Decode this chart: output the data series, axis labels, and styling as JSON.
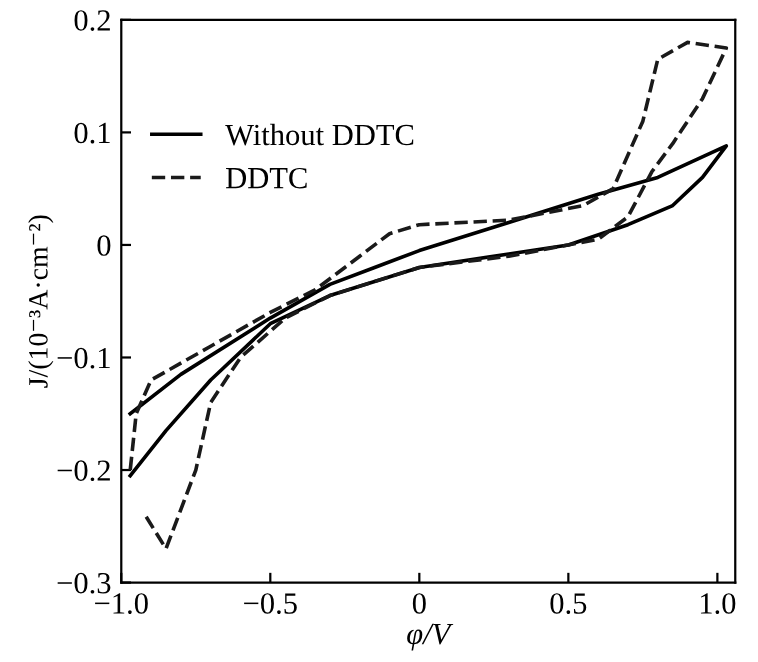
{
  "chart_data": {
    "type": "line",
    "xlabel": "φ/V",
    "ylabel": "J/(10⁻³A·cm⁻²)",
    "xlim": [
      -1.0,
      1.06
    ],
    "ylim": [
      -0.3,
      0.2
    ],
    "xticks": [
      {
        "value": -1.0,
        "label": "−1.0"
      },
      {
        "value": -0.5,
        "label": "−0.5"
      },
      0,
      0.5,
      {
        "value": 1.0,
        "label": "1.0"
      }
    ],
    "yticks": [
      {
        "value": -0.3,
        "label": "−0.3"
      },
      {
        "value": -0.2,
        "label": "−0.2"
      },
      {
        "value": -0.1,
        "label": "−0.1"
      },
      0,
      0.1,
      0.2
    ],
    "grid": false,
    "legend": "top left",
    "marker": "none",
    "series": [
      {
        "name": "Without DDTC",
        "color": "#000000",
        "line_style": "solid",
        "x": [
          -0.97,
          -0.8,
          -0.5,
          -0.3,
          -0.15,
          0,
          0.3,
          0.6,
          0.8,
          1.03,
          0.95,
          0.85,
          0.7,
          0.5,
          0.3,
          0,
          -0.3,
          -0.5,
          -0.7,
          -0.85,
          -0.97
        ],
        "values": [
          -0.15,
          -0.115,
          -0.065,
          -0.035,
          -0.02,
          -0.005,
          0.02,
          0.045,
          0.06,
          0.088,
          0.06,
          0.035,
          0.018,
          0.0,
          -0.008,
          -0.02,
          -0.045,
          -0.07,
          -0.12,
          -0.165,
          -0.205
        ]
      },
      {
        "name": "DDTC",
        "color": "#1a1a1a",
        "line_style": "dashed",
        "x": [
          -0.97,
          -0.95,
          -0.9,
          -0.7,
          -0.5,
          -0.35,
          -0.2,
          -0.1,
          0,
          0.3,
          0.55,
          0.65,
          0.75,
          0.8,
          0.9,
          1.03,
          0.95,
          0.85,
          0.78,
          0.7,
          0.6,
          0.3,
          0,
          -0.3,
          -0.45,
          -0.6,
          -0.7,
          -0.75,
          -0.85,
          -0.92
        ],
        "values": [
          -0.2,
          -0.15,
          -0.12,
          -0.09,
          -0.06,
          -0.04,
          -0.01,
          0.01,
          0.018,
          0.022,
          0.035,
          0.05,
          0.11,
          0.165,
          0.18,
          0.175,
          0.13,
          0.09,
          0.065,
          0.025,
          0.005,
          -0.01,
          -0.02,
          -0.045,
          -0.065,
          -0.1,
          -0.14,
          -0.2,
          -0.27,
          -0.24
        ]
      }
    ]
  }
}
